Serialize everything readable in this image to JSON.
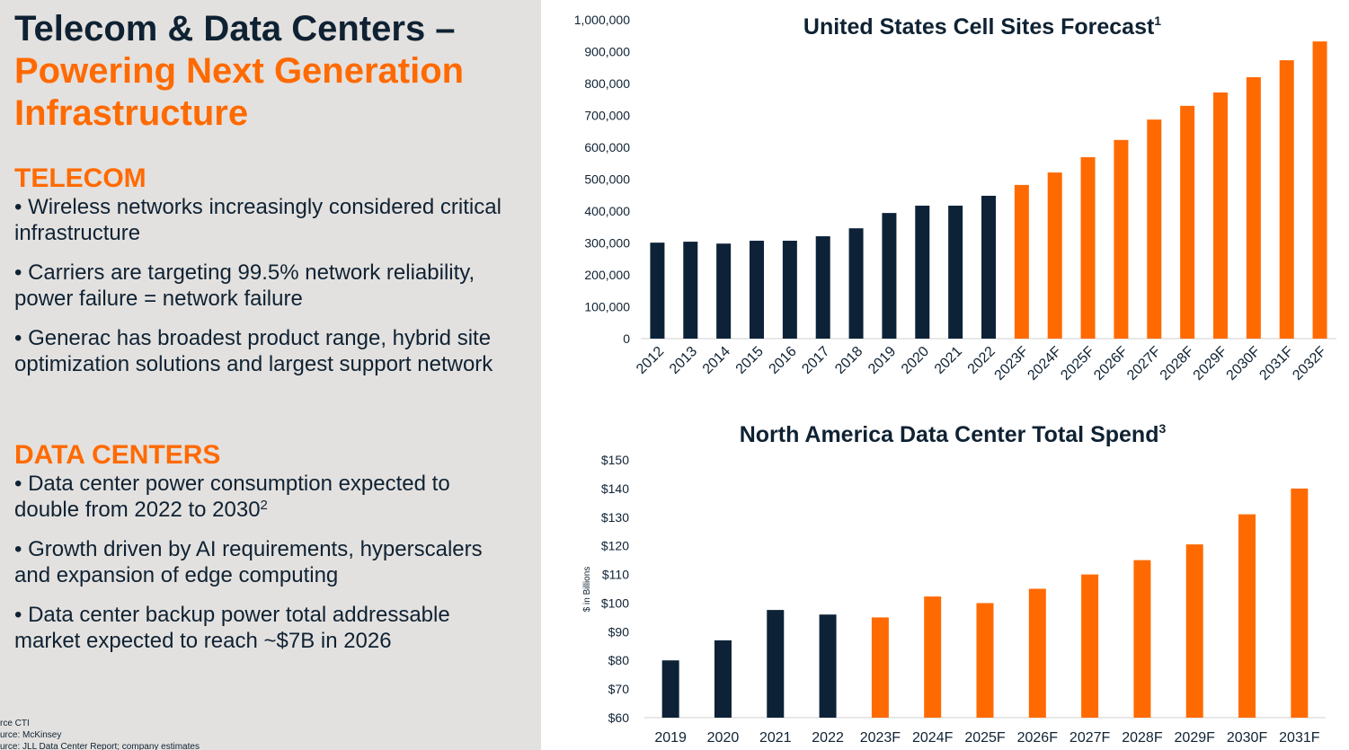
{
  "slide": {
    "title_lines": [
      "Telecom & Data Centers –",
      "Powering Next Generation",
      "Infrastructure"
    ],
    "sections": [
      {
        "heading": "TELECOM",
        "bullets": [
          [
            "• Wireless networks increasingly considered critical",
            "infrastructure"
          ],
          [
            "• Carriers are targeting 99.5% network reliability,",
            "power failure = network failure"
          ],
          [
            "• Generac has broadest product range, hybrid site",
            "optimization solutions and largest support network"
          ]
        ]
      },
      {
        "heading": "DATA CENTERS",
        "bullets": [
          [
            "• Data center power consumption expected to",
            "double from 2022 to 2030"
          ],
          [
            "• Growth driven by AI requirements, hyperscalers",
            "and expansion of edge computing"
          ],
          [
            "• Data center backup power total addressable",
            "market expected to reach ~$7B in 2026"
          ]
        ]
      }
    ],
    "footnote_sup": "2",
    "footnotes": [
      "rce CTI",
      "urce: McKinsey",
      "urce: JLL Data Center Report; company estimates"
    ]
  },
  "chart_data": [
    {
      "type": "bar",
      "title": "United States Cell Sites Forecast",
      "title_sup": "1",
      "categories": [
        "2012",
        "2013",
        "2014",
        "2015",
        "2016",
        "2017",
        "2018",
        "2019",
        "2020",
        "2021",
        "2022",
        "2023F",
        "2024F",
        "2025F",
        "2026F",
        "2027F",
        "2028F",
        "2029F",
        "2030F",
        "2031F",
        "2032F"
      ],
      "values": [
        301000,
        304000,
        298000,
        307000,
        307000,
        321000,
        346000,
        394000,
        417000,
        417000,
        448000,
        482000,
        521000,
        569000,
        623000,
        687000,
        730000,
        772000,
        820000,
        873000,
        932000
      ],
      "colors": [
        "#0d2237",
        "#0d2237",
        "#0d2237",
        "#0d2237",
        "#0d2237",
        "#0d2237",
        "#0d2237",
        "#0d2237",
        "#0d2237",
        "#0d2237",
        "#0d2237",
        "#ff6a00",
        "#ff6a00",
        "#ff6a00",
        "#ff6a00",
        "#ff6a00",
        "#ff6a00",
        "#ff6a00",
        "#ff6a00",
        "#ff6a00",
        "#ff6a00"
      ],
      "ylim": [
        0,
        1000000
      ],
      "yticks": [
        0,
        {
          "value": 100000,
          "label": "100,000"
        },
        {
          "value": 200000,
          "label": "200,000"
        },
        {
          "value": 300000,
          "label": "300,000"
        },
        {
          "value": 400000,
          "label": "400,000"
        },
        {
          "value": 500000,
          "label": "500,000"
        },
        {
          "value": 600000,
          "label": "600,000"
        },
        {
          "value": 700000,
          "label": "700,000"
        },
        {
          "value": 800000,
          "label": "800,000"
        },
        {
          "value": 900000,
          "label": "900,000"
        },
        {
          "value": 1000000,
          "label": "1,000,000"
        }
      ]
    },
    {
      "type": "bar",
      "title": "North America Data Center Total Spend",
      "title_sup": "3",
      "y_label": "$ in Billions",
      "categories": [
        "2019",
        "2020",
        "2021",
        "2022",
        "2023F",
        "2024F",
        "2025F",
        "2026F",
        "2027F",
        "2028F",
        "2029F",
        "2030F",
        "2031F"
      ],
      "values": [
        80,
        87,
        97.6,
        96,
        95,
        102.3,
        100,
        105,
        110,
        115,
        120.5,
        131,
        140
      ],
      "colors": [
        "#0d2237",
        "#0d2237",
        "#0d2237",
        "#0d2237",
        "#ff6a00",
        "#ff6a00",
        "#ff6a00",
        "#ff6a00",
        "#ff6a00",
        "#ff6a00",
        "#ff6a00",
        "#ff6a00",
        "#ff6a00"
      ],
      "ylim": [
        60,
        150
      ],
      "yticks": [
        {
          "value": 60,
          "label": "$60"
        },
        {
          "value": 70,
          "label": "$70"
        },
        {
          "value": 80,
          "label": "$80"
        },
        {
          "value": 90,
          "label": "$90"
        },
        {
          "value": 100,
          "label": "$100"
        },
        {
          "value": 110,
          "label": "$110"
        },
        {
          "value": 120,
          "label": "$120"
        },
        {
          "value": 130,
          "label": "$130"
        },
        {
          "value": 140,
          "label": "$140"
        },
        {
          "value": 150,
          "label": "$150"
        }
      ]
    }
  ]
}
